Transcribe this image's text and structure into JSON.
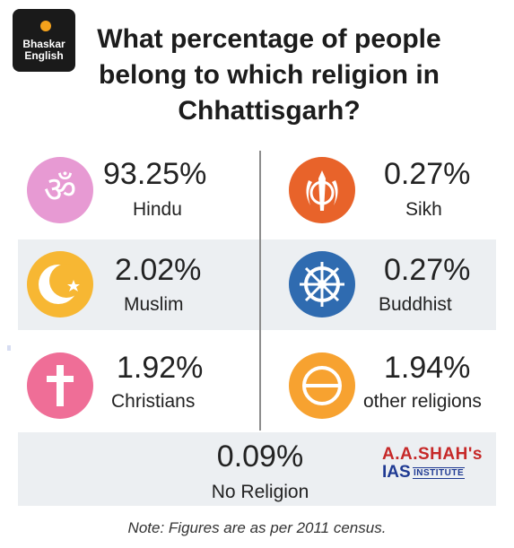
{
  "logo": {
    "line1": "Bhaskar",
    "line2": "English"
  },
  "title": "What percentage of people belong to which religion in Chhattisgarh?",
  "chart_data": {
    "type": "table",
    "title": "What percentage of people belong to which religion in Chhattisgarh?",
    "categories": [
      "Hindu",
      "Sikh",
      "Muslim",
      "Buddhist",
      "Christians",
      "other religions",
      "No Religion"
    ],
    "values": [
      93.25,
      0.27,
      2.02,
      0.27,
      1.92,
      1.94,
      0.09
    ],
    "unit": "%"
  },
  "rows": [
    {
      "left": {
        "value": "93.25%",
        "label": "Hindu",
        "icon": "om-icon",
        "color": "#e79ad3"
      },
      "right": {
        "value": "0.27%",
        "label": "Sikh",
        "icon": "khanda-icon",
        "color": "#e8632a"
      }
    },
    {
      "left": {
        "value": "2.02%",
        "label": "Muslim",
        "icon": "crescent-star-icon",
        "color": "#f7b733"
      },
      "right": {
        "value": "0.27%",
        "label": "Buddhist",
        "icon": "dharma-wheel-icon",
        "color": "#2f6bb0"
      }
    },
    {
      "left": {
        "value": "1.92%",
        "label": "Christians",
        "icon": "cross-icon",
        "color": "#ef6e97"
      },
      "right": {
        "value": "1.94%",
        "label": "other religions",
        "icon": "circle-bar-icon",
        "color": "#f7a230"
      }
    }
  ],
  "bottom": {
    "value": "0.09%",
    "label": "No Religion"
  },
  "watermark": {
    "line1": "A.A.SHAH's",
    "line2": "IAS",
    "line3": "INSTITUTE"
  },
  "note": "Note: Figures are as per 2011 census."
}
